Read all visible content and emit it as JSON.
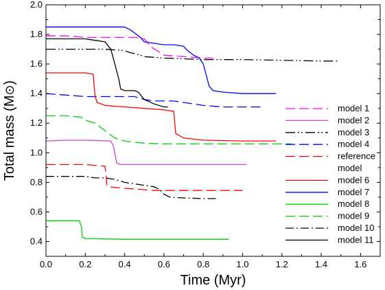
{
  "chart_data": {
    "type": "line",
    "xlabel": "Time (Myr)",
    "ylabel": "Total mass (M",
    "ylabel_symbol": "⊙",
    "ylabel_close": ")",
    "xlim": [
      0.0,
      1.7
    ],
    "ylim": [
      0.3,
      2.0
    ],
    "xticks": [
      "0.0",
      "0.2",
      "0.4",
      "0.6",
      "0.8",
      "1.0",
      "1.2",
      "1.4",
      "1.6"
    ],
    "yticks": [
      "0.4",
      "0.6",
      "0.8",
      "1.0",
      "1.2",
      "1.4",
      "1.6",
      "1.8",
      "2.0"
    ],
    "grid": false,
    "legend_position": "right",
    "series": [
      {
        "name": "model 1",
        "color": "#ff00ff",
        "dash": "long-dash",
        "x": [
          0.0,
          0.1,
          0.2,
          0.3,
          0.45,
          0.5,
          0.53,
          0.6,
          0.7,
          0.8,
          0.85
        ],
        "y": [
          1.79,
          1.79,
          1.78,
          1.78,
          1.78,
          1.77,
          1.72,
          1.66,
          1.65,
          1.64,
          1.64
        ]
      },
      {
        "name": "model 2",
        "color": "#cc44cc",
        "dash": "solid",
        "x": [
          0.0,
          0.1,
          0.2,
          0.33,
          0.345,
          0.355,
          0.36,
          0.38,
          0.45,
          0.6,
          0.8,
          1.0,
          1.02
        ],
        "y": [
          1.08,
          1.085,
          1.085,
          1.08,
          1.04,
          0.96,
          0.93,
          0.92,
          0.92,
          0.92,
          0.92,
          0.92,
          0.92
        ]
      },
      {
        "name": "model 3",
        "color": "#000000",
        "dash": "dash-dot-dot",
        "x": [
          0.0,
          0.1,
          0.2,
          0.3,
          0.4,
          0.42,
          0.45,
          0.48,
          0.5,
          0.6,
          0.7,
          0.8,
          1.0,
          1.2,
          1.4,
          1.49
        ],
        "y": [
          1.7,
          1.7,
          1.7,
          1.7,
          1.69,
          1.68,
          1.67,
          1.66,
          1.65,
          1.64,
          1.635,
          1.63,
          1.63,
          1.625,
          1.62,
          1.62
        ]
      },
      {
        "name": "model 4",
        "color": "#0000ff",
        "dash": "long-dash",
        "x": [
          0.0,
          0.1,
          0.2,
          0.3,
          0.4,
          0.45,
          0.5,
          0.55,
          0.6,
          0.65,
          0.7,
          0.75,
          0.8,
          0.9,
          1.0,
          1.1
        ],
        "y": [
          1.4,
          1.39,
          1.38,
          1.38,
          1.38,
          1.38,
          1.36,
          1.35,
          1.35,
          1.35,
          1.34,
          1.33,
          1.32,
          1.31,
          1.31,
          1.31
        ]
      },
      {
        "name": "reference model",
        "color": "#ff0000",
        "dash": "long-dash",
        "x": [
          0.0,
          0.1,
          0.2,
          0.3,
          0.305,
          0.31,
          0.32,
          0.4,
          0.45,
          0.5,
          0.55,
          0.6,
          0.7,
          0.8,
          1.0
        ],
        "y": [
          0.92,
          0.92,
          0.92,
          0.91,
          0.86,
          0.78,
          0.77,
          0.76,
          0.755,
          0.75,
          0.745,
          0.745,
          0.745,
          0.745,
          0.745
        ]
      },
      {
        "name": "model 6",
        "color": "#ff0000",
        "dash": "solid",
        "x": [
          0.0,
          0.1,
          0.2,
          0.24,
          0.245,
          0.25,
          0.26,
          0.3,
          0.4,
          0.5,
          0.6,
          0.65,
          0.655,
          0.66,
          0.7,
          0.8,
          1.0,
          1.17
        ],
        "y": [
          1.54,
          1.54,
          1.54,
          1.53,
          1.45,
          1.38,
          1.34,
          1.32,
          1.31,
          1.3,
          1.29,
          1.28,
          1.2,
          1.13,
          1.1,
          1.085,
          1.08,
          1.08
        ]
      },
      {
        "name": "model 7",
        "color": "#0000ff",
        "dash": "solid",
        "x": [
          0.0,
          0.1,
          0.2,
          0.3,
          0.4,
          0.43,
          0.48,
          0.5,
          0.55,
          0.6,
          0.65,
          0.7,
          0.72,
          0.75,
          0.78,
          0.8,
          0.82,
          0.83,
          0.85,
          0.9,
          1.0,
          1.1,
          1.17
        ],
        "y": [
          1.85,
          1.85,
          1.85,
          1.85,
          1.85,
          1.83,
          1.78,
          1.75,
          1.74,
          1.73,
          1.73,
          1.72,
          1.69,
          1.66,
          1.64,
          1.6,
          1.5,
          1.45,
          1.42,
          1.41,
          1.4,
          1.4,
          1.4
        ]
      },
      {
        "name": "model 8",
        "color": "#00cc00",
        "dash": "solid",
        "x": [
          0.0,
          0.1,
          0.17,
          0.18,
          0.185,
          0.2,
          0.4,
          0.6,
          0.8,
          0.93
        ],
        "y": [
          0.54,
          0.54,
          0.54,
          0.5,
          0.43,
          0.42,
          0.415,
          0.415,
          0.415,
          0.415
        ]
      },
      {
        "name": "model 9",
        "color": "#00cc00",
        "dash": "long-dash",
        "x": [
          0.0,
          0.1,
          0.18,
          0.2,
          0.25,
          0.3,
          0.35,
          0.4,
          0.45,
          0.5,
          0.6,
          0.8,
          1.0,
          1.2,
          1.25
        ],
        "y": [
          1.25,
          1.25,
          1.24,
          1.22,
          1.2,
          1.15,
          1.1,
          1.08,
          1.07,
          1.065,
          1.06,
          1.06,
          1.06,
          1.06,
          1.06
        ]
      },
      {
        "name": "model 10",
        "color": "#000000",
        "dash": "dash-dot",
        "x": [
          0.0,
          0.1,
          0.2,
          0.25,
          0.3,
          0.35,
          0.4,
          0.45,
          0.5,
          0.55,
          0.58,
          0.6,
          0.63,
          0.7,
          0.8,
          0.87
        ],
        "y": [
          0.84,
          0.84,
          0.84,
          0.83,
          0.83,
          0.82,
          0.8,
          0.79,
          0.78,
          0.77,
          0.75,
          0.72,
          0.7,
          0.695,
          0.69,
          0.69
        ]
      },
      {
        "name": "model 11",
        "color": "#000000",
        "dash": "solid",
        "x": [
          0.0,
          0.1,
          0.2,
          0.25,
          0.3,
          0.33,
          0.35,
          0.37,
          0.38,
          0.4,
          0.45,
          0.47,
          0.5,
          0.55,
          0.6,
          0.62
        ],
        "y": [
          1.77,
          1.77,
          1.77,
          1.76,
          1.75,
          1.7,
          1.6,
          1.5,
          1.43,
          1.42,
          1.42,
          1.41,
          1.36,
          1.33,
          1.31,
          1.31
        ]
      }
    ]
  }
}
